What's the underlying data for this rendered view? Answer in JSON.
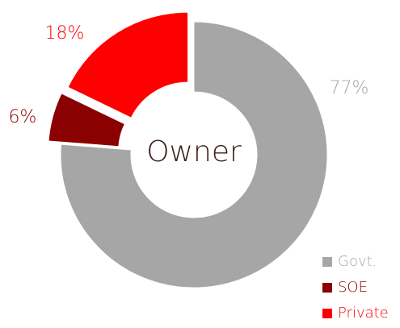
{
  "chart_data": {
    "type": "pie",
    "title": "Owner",
    "categories": [
      "Govt.",
      "SOE",
      "Private"
    ],
    "values": [
      77,
      6,
      18
    ],
    "value_labels": [
      "77%",
      "6%",
      "18%"
    ],
    "colors": [
      "#a6a6a6",
      "#8b0000",
      "#ff0000"
    ],
    "donut": true,
    "legend": "bottom-right"
  }
}
